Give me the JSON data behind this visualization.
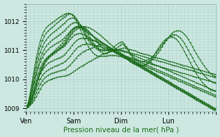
{
  "xlabel": "Pression niveau de la mer( hPa )",
  "background_color": "#cce8e0",
  "plot_bg_color": "#cce8e0",
  "grid_color": "#aacccc",
  "line_color": "#1a6b1a",
  "marker": "+",
  "xlim": [
    0,
    96
  ],
  "ylim": [
    1008.9,
    1012.6
  ],
  "yticks": [
    1009,
    1010,
    1011,
    1012
  ],
  "xtick_positions": [
    0,
    24,
    48,
    72,
    96
  ],
  "xtick_labels": [
    "Ven",
    "Sam",
    "Dim",
    "Lun",
    ""
  ],
  "series": [
    [
      1009.0,
      1009.05,
      1009.12,
      1009.2,
      1009.3,
      1009.42,
      1009.55,
      1009.68,
      1009.8,
      1009.88,
      1009.93,
      1009.97,
      1010.0,
      1010.03,
      1010.05,
      1010.07,
      1010.09,
      1010.1,
      1010.11,
      1010.12,
      1010.14,
      1010.17,
      1010.2,
      1010.25,
      1010.3,
      1010.35,
      1010.4,
      1010.44,
      1010.48,
      1010.52,
      1010.56,
      1010.6,
      1010.64,
      1010.68,
      1010.72,
      1010.76,
      1010.8,
      1010.84,
      1010.88,
      1010.9,
      1010.92,
      1010.94,
      1010.96,
      1010.98,
      1011.0,
      1011.02,
      1011.04,
      1011.06,
      1011.08,
      1011.08,
      1011.06,
      1011.04,
      1011.02,
      1011.0,
      1010.98,
      1010.95,
      1010.92,
      1010.9,
      1010.88,
      1010.86,
      1010.84,
      1010.82,
      1010.8,
      1010.78,
      1010.76,
      1010.74,
      1010.72,
      1010.7,
      1010.68,
      1010.66,
      1010.64,
      1010.62,
      1010.6,
      1010.58,
      1010.56,
      1010.54,
      1010.52,
      1010.5,
      1010.48,
      1010.46,
      1010.44,
      1010.42,
      1010.4,
      1010.38,
      1010.36,
      1010.34,
      1010.32,
      1010.3,
      1010.28,
      1010.26,
      1010.24,
      1010.22,
      1010.2,
      1010.18,
      1010.16
    ],
    [
      1009.0,
      1009.06,
      1009.14,
      1009.25,
      1009.38,
      1009.54,
      1009.7,
      1009.84,
      1009.96,
      1010.04,
      1010.1,
      1010.15,
      1010.19,
      1010.22,
      1010.24,
      1010.26,
      1010.28,
      1010.3,
      1010.32,
      1010.34,
      1010.38,
      1010.44,
      1010.5,
      1010.58,
      1010.66,
      1010.74,
      1010.82,
      1010.88,
      1010.93,
      1010.97,
      1011.0,
      1011.03,
      1011.06,
      1011.09,
      1011.12,
      1011.15,
      1011.18,
      1011.21,
      1011.22,
      1011.2,
      1011.16,
      1011.11,
      1011.05,
      1010.99,
      1010.95,
      1010.91,
      1010.87,
      1010.84,
      1010.82,
      1010.8,
      1010.78,
      1010.76,
      1010.74,
      1010.72,
      1010.7,
      1010.68,
      1010.66,
      1010.64,
      1010.62,
      1010.6,
      1010.58,
      1010.56,
      1010.54,
      1010.52,
      1010.5,
      1010.48,
      1010.46,
      1010.44,
      1010.42,
      1010.4,
      1010.38,
      1010.36,
      1010.34,
      1010.32,
      1010.3,
      1010.28,
      1010.26,
      1010.24,
      1010.22,
      1010.2,
      1010.18,
      1010.16,
      1010.14,
      1010.12,
      1010.1,
      1010.08,
      1010.06,
      1010.04,
      1010.02,
      1010.0,
      1009.98,
      1009.96,
      1009.94,
      1009.92,
      1009.9,
      1009.9
    ],
    [
      1009.0,
      1009.08,
      1009.18,
      1009.32,
      1009.5,
      1009.68,
      1009.86,
      1010.02,
      1010.14,
      1010.22,
      1010.28,
      1010.33,
      1010.37,
      1010.41,
      1010.44,
      1010.47,
      1010.5,
      1010.53,
      1010.56,
      1010.6,
      1010.65,
      1010.72,
      1010.8,
      1010.89,
      1010.98,
      1011.06,
      1011.12,
      1011.16,
      1011.19,
      1011.21,
      1011.22,
      1011.22,
      1011.21,
      1011.2,
      1011.18,
      1011.16,
      1011.14,
      1011.12,
      1011.1,
      1011.08,
      1011.06,
      1011.04,
      1011.02,
      1011.0,
      1010.98,
      1010.95,
      1010.92,
      1010.89,
      1010.86,
      1010.83,
      1010.8,
      1010.77,
      1010.74,
      1010.71,
      1010.68,
      1010.65,
      1010.62,
      1010.59,
      1010.56,
      1010.53,
      1010.5,
      1010.47,
      1010.44,
      1010.41,
      1010.38,
      1010.35,
      1010.32,
      1010.29,
      1010.26,
      1010.23,
      1010.2,
      1010.17,
      1010.14,
      1010.11,
      1010.08,
      1010.05,
      1010.02,
      1009.99,
      1009.96,
      1009.93,
      1009.9,
      1009.87,
      1009.84,
      1009.81,
      1009.78,
      1009.75,
      1009.72,
      1009.69,
      1009.66,
      1009.63,
      1009.6,
      1009.57,
      1009.54,
      1009.51,
      1009.48,
      1009.45
    ],
    [
      1009.0,
      1009.1,
      1009.22,
      1009.38,
      1009.58,
      1009.8,
      1010.02,
      1010.2,
      1010.33,
      1010.42,
      1010.5,
      1010.56,
      1010.6,
      1010.64,
      1010.67,
      1010.7,
      1010.73,
      1010.76,
      1010.8,
      1010.85,
      1010.92,
      1011.0,
      1011.09,
      1011.18,
      1011.26,
      1011.33,
      1011.38,
      1011.41,
      1011.42,
      1011.42,
      1011.41,
      1011.39,
      1011.37,
      1011.35,
      1011.33,
      1011.31,
      1011.29,
      1011.27,
      1011.25,
      1011.22,
      1011.18,
      1011.14,
      1011.1,
      1011.05,
      1011.0,
      1010.96,
      1010.91,
      1010.87,
      1010.83,
      1010.79,
      1010.75,
      1010.71,
      1010.67,
      1010.63,
      1010.59,
      1010.55,
      1010.51,
      1010.47,
      1010.43,
      1010.39,
      1010.35,
      1010.31,
      1010.27,
      1010.23,
      1010.19,
      1010.15,
      1010.11,
      1010.07,
      1010.03,
      1009.99,
      1009.95,
      1009.91,
      1009.87,
      1009.83,
      1009.79,
      1009.75,
      1009.71,
      1009.67,
      1009.63,
      1009.59,
      1009.55,
      1009.51,
      1009.47,
      1009.43,
      1009.39,
      1009.35,
      1009.31,
      1009.27,
      1009.23,
      1009.19,
      1009.15,
      1009.11,
      1009.07,
      1009.03,
      1008.99,
      1009.0
    ],
    [
      1009.0,
      1009.12,
      1009.28,
      1009.48,
      1009.72,
      1009.97,
      1010.2,
      1010.4,
      1010.55,
      1010.65,
      1010.73,
      1010.8,
      1010.85,
      1010.9,
      1010.94,
      1010.98,
      1011.02,
      1011.06,
      1011.1,
      1011.15,
      1011.22,
      1011.3,
      1011.38,
      1011.46,
      1011.52,
      1011.56,
      1011.58,
      1011.58,
      1011.56,
      1011.53,
      1011.49,
      1011.45,
      1011.41,
      1011.37,
      1011.33,
      1011.29,
      1011.25,
      1011.21,
      1011.17,
      1011.13,
      1011.1,
      1011.06,
      1011.02,
      1010.98,
      1010.94,
      1010.9,
      1010.86,
      1010.82,
      1010.78,
      1010.74,
      1010.7,
      1010.66,
      1010.62,
      1010.58,
      1010.54,
      1010.5,
      1010.46,
      1010.42,
      1010.38,
      1010.34,
      1010.3,
      1010.26,
      1010.22,
      1010.18,
      1010.14,
      1010.1,
      1010.06,
      1010.02,
      1009.98,
      1009.94,
      1009.9,
      1009.86,
      1009.82,
      1009.78,
      1009.74,
      1009.7,
      1009.66,
      1009.62,
      1009.58,
      1009.54,
      1009.5,
      1009.46,
      1009.42,
      1009.38,
      1009.34,
      1009.3,
      1009.26,
      1009.22,
      1009.18,
      1009.14,
      1009.1,
      1009.06,
      1009.02,
      1008.98,
      1008.94,
      1009.0
    ],
    [
      1009.0,
      1009.14,
      1009.34,
      1009.6,
      1009.88,
      1010.16,
      1010.4,
      1010.6,
      1010.75,
      1010.87,
      1010.96,
      1011.04,
      1011.1,
      1011.15,
      1011.2,
      1011.24,
      1011.28,
      1011.32,
      1011.37,
      1011.43,
      1011.5,
      1011.58,
      1011.66,
      1011.73,
      1011.78,
      1011.8,
      1011.8,
      1011.78,
      1011.74,
      1011.7,
      1011.65,
      1011.6,
      1011.55,
      1011.5,
      1011.45,
      1011.4,
      1011.35,
      1011.3,
      1011.25,
      1011.2,
      1011.16,
      1011.11,
      1011.06,
      1011.01,
      1010.97,
      1010.93,
      1010.88,
      1010.84,
      1010.8,
      1010.76,
      1010.72,
      1010.68,
      1010.64,
      1010.6,
      1010.56,
      1010.52,
      1010.48,
      1010.44,
      1010.4,
      1010.36,
      1010.32,
      1010.28,
      1010.24,
      1010.2,
      1010.16,
      1010.12,
      1010.08,
      1010.04,
      1010.0,
      1009.96,
      1009.92,
      1009.88,
      1009.84,
      1009.8,
      1009.76,
      1009.72,
      1009.68,
      1009.64,
      1009.6,
      1009.56,
      1009.52,
      1009.48,
      1009.44,
      1009.4,
      1009.36,
      1009.32,
      1009.28,
      1009.24,
      1009.2,
      1009.16,
      1009.12,
      1009.08,
      1009.04,
      1009.0,
      1008.96,
      1009.0
    ],
    [
      1009.0,
      1009.16,
      1009.38,
      1009.66,
      1009.96,
      1010.24,
      1010.5,
      1010.72,
      1010.9,
      1011.04,
      1011.15,
      1011.23,
      1011.3,
      1011.36,
      1011.41,
      1011.46,
      1011.51,
      1011.56,
      1011.62,
      1011.68,
      1011.75,
      1011.82,
      1011.88,
      1011.93,
      1011.96,
      1011.96,
      1011.93,
      1011.88,
      1011.82,
      1011.76,
      1011.7,
      1011.64,
      1011.58,
      1011.52,
      1011.47,
      1011.42,
      1011.37,
      1011.32,
      1011.27,
      1011.22,
      1011.17,
      1011.13,
      1011.09,
      1011.05,
      1011.01,
      1010.97,
      1010.93,
      1010.89,
      1010.86,
      1010.82,
      1010.78,
      1010.74,
      1010.7,
      1010.66,
      1010.62,
      1010.58,
      1010.54,
      1010.5,
      1010.46,
      1010.42,
      1010.38,
      1010.34,
      1010.3,
      1010.26,
      1010.22,
      1010.18,
      1010.14,
      1010.1,
      1010.06,
      1010.02,
      1009.98,
      1009.94,
      1009.9,
      1009.86,
      1009.82,
      1009.78,
      1009.74,
      1009.7,
      1009.66,
      1009.62,
      1009.58,
      1009.54,
      1009.5,
      1009.46,
      1009.42,
      1009.38,
      1009.34,
      1009.3,
      1009.26,
      1009.22,
      1009.18,
      1009.14,
      1009.1,
      1009.06,
      1009.02,
      1009.0
    ],
    [
      1009.0,
      1009.18,
      1009.44,
      1009.76,
      1010.1,
      1010.42,
      1010.7,
      1010.93,
      1011.12,
      1011.26,
      1011.37,
      1011.46,
      1011.53,
      1011.59,
      1011.65,
      1011.7,
      1011.76,
      1011.82,
      1011.88,
      1011.94,
      1012.0,
      1012.06,
      1012.1,
      1012.12,
      1012.1,
      1012.05,
      1011.97,
      1011.87,
      1011.76,
      1011.65,
      1011.54,
      1011.44,
      1011.34,
      1011.25,
      1011.18,
      1011.12,
      1011.07,
      1011.04,
      1011.02,
      1011.01,
      1011.01,
      1011.02,
      1011.03,
      1011.04,
      1011.04,
      1011.04,
      1011.03,
      1011.02,
      1011.0,
      1010.98,
      1010.96,
      1010.94,
      1010.92,
      1010.9,
      1010.88,
      1010.86,
      1010.84,
      1010.82,
      1010.8,
      1010.78,
      1010.76,
      1010.74,
      1010.72,
      1010.7,
      1010.68,
      1010.66,
      1010.64,
      1010.62,
      1010.6,
      1010.58,
      1010.56,
      1010.54,
      1010.52,
      1010.5,
      1010.48,
      1010.46,
      1010.44,
      1010.42,
      1010.4,
      1010.38,
      1010.36,
      1010.34,
      1010.32,
      1010.3,
      1010.28,
      1010.26,
      1010.24,
      1010.22,
      1010.2,
      1010.18,
      1010.16,
      1010.14,
      1010.12,
      1010.1,
      1010.08,
      1010.1
    ],
    [
      1009.0,
      1009.2,
      1009.5,
      1009.86,
      1010.24,
      1010.6,
      1010.9,
      1011.15,
      1011.34,
      1011.49,
      1011.6,
      1011.68,
      1011.74,
      1011.8,
      1011.86,
      1011.92,
      1011.98,
      1012.04,
      1012.1,
      1012.15,
      1012.2,
      1012.24,
      1012.26,
      1012.24,
      1012.18,
      1012.1,
      1011.98,
      1011.85,
      1011.72,
      1011.58,
      1011.46,
      1011.35,
      1011.26,
      1011.18,
      1011.11,
      1011.06,
      1011.02,
      1011.0,
      1010.99,
      1010.99,
      1011.0,
      1011.01,
      1011.02,
      1011.02,
      1011.02,
      1011.01,
      1011.0,
      1010.99,
      1010.97,
      1010.95,
      1010.93,
      1010.91,
      1010.88,
      1010.85,
      1010.82,
      1010.79,
      1010.76,
      1010.73,
      1010.7,
      1010.67,
      1010.64,
      1010.61,
      1010.58,
      1010.55,
      1010.52,
      1010.49,
      1010.46,
      1010.43,
      1010.4,
      1010.37,
      1010.34,
      1010.31,
      1010.28,
      1010.25,
      1010.22,
      1010.19,
      1010.16,
      1010.13,
      1010.1,
      1010.07,
      1010.04,
      1010.01,
      1009.98,
      1009.95,
      1009.92,
      1009.89,
      1009.86,
      1009.83,
      1009.8,
      1009.77,
      1009.74,
      1009.71,
      1009.68,
      1009.65,
      1009.62,
      1009.6
    ],
    [
      1009.0,
      1009.22,
      1009.56,
      1009.96,
      1010.38,
      1010.76,
      1011.08,
      1011.34,
      1011.54,
      1011.68,
      1011.78,
      1011.85,
      1011.91,
      1011.96,
      1012.01,
      1012.06,
      1012.11,
      1012.16,
      1012.2,
      1012.24,
      1012.27,
      1012.28,
      1012.27,
      1012.22,
      1012.14,
      1012.02,
      1011.88,
      1011.72,
      1011.56,
      1011.4,
      1011.26,
      1011.14,
      1011.03,
      1010.95,
      1010.88,
      1010.83,
      1010.8,
      1010.79,
      1010.79,
      1010.8,
      1010.81,
      1010.82,
      1010.83,
      1010.83,
      1010.83,
      1010.82,
      1010.8,
      1010.79,
      1010.77,
      1010.75,
      1010.73,
      1010.71,
      1010.68,
      1010.65,
      1010.62,
      1010.59,
      1010.56,
      1010.53,
      1010.5,
      1010.47,
      1010.44,
      1010.41,
      1010.38,
      1010.35,
      1010.32,
      1010.29,
      1010.26,
      1010.23,
      1010.2,
      1010.17,
      1010.14,
      1010.11,
      1010.08,
      1010.05,
      1010.02,
      1009.99,
      1009.96,
      1009.93,
      1009.9,
      1009.87,
      1009.84,
      1009.81,
      1009.78,
      1009.75,
      1009.72,
      1009.69,
      1009.66,
      1009.63,
      1009.6,
      1009.57,
      1009.54,
      1009.51,
      1009.48,
      1009.45,
      1009.42,
      1009.4
    ],
    [
      1009.0,
      1009.1,
      1009.24,
      1009.42,
      1009.64,
      1009.88,
      1010.1,
      1010.3,
      1010.46,
      1010.58,
      1010.67,
      1010.74,
      1010.8,
      1010.85,
      1010.9,
      1010.95,
      1011.0,
      1011.06,
      1011.12,
      1011.19,
      1011.28,
      1011.38,
      1011.48,
      1011.58,
      1011.66,
      1011.72,
      1011.77,
      1011.8,
      1011.82,
      1011.82,
      1011.81,
      1011.79,
      1011.76,
      1011.72,
      1011.68,
      1011.63,
      1011.58,
      1011.52,
      1011.46,
      1011.4,
      1011.34,
      1011.28,
      1011.22,
      1011.16,
      1011.1,
      1011.04,
      1010.98,
      1010.92,
      1010.86,
      1010.8,
      1010.74,
      1010.68,
      1010.62,
      1010.57,
      1010.53,
      1010.5,
      1010.48,
      1010.47,
      1010.48,
      1010.5,
      1010.53,
      1010.57,
      1010.62,
      1010.68,
      1010.75,
      1010.83,
      1010.92,
      1011.02,
      1011.13,
      1011.24,
      1011.34,
      1011.44,
      1011.52,
      1011.59,
      1011.64,
      1011.67,
      1011.68,
      1011.66,
      1011.62,
      1011.56,
      1011.48,
      1011.38,
      1011.26,
      1011.14,
      1011.02,
      1010.9,
      1010.78,
      1010.67,
      1010.56,
      1010.46,
      1010.37,
      1010.29,
      1010.22,
      1010.16,
      1010.11,
      1010.1
    ],
    [
      1009.0,
      1009.1,
      1009.22,
      1009.38,
      1009.58,
      1009.8,
      1010.02,
      1010.22,
      1010.38,
      1010.52,
      1010.63,
      1010.72,
      1010.8,
      1010.87,
      1010.93,
      1010.98,
      1011.04,
      1011.1,
      1011.16,
      1011.24,
      1011.33,
      1011.44,
      1011.55,
      1011.65,
      1011.73,
      1011.79,
      1011.82,
      1011.83,
      1011.82,
      1011.79,
      1011.74,
      1011.68,
      1011.6,
      1011.52,
      1011.43,
      1011.33,
      1011.24,
      1011.16,
      1011.09,
      1011.04,
      1011.0,
      1010.99,
      1010.99,
      1011.01,
      1011.03,
      1011.07,
      1011.12,
      1011.17,
      1011.22,
      1011.16,
      1011.08,
      1010.99,
      1010.9,
      1010.82,
      1010.75,
      1010.7,
      1010.66,
      1010.63,
      1010.62,
      1010.63,
      1010.65,
      1010.68,
      1010.72,
      1010.78,
      1010.84,
      1010.92,
      1011.0,
      1011.1,
      1011.19,
      1011.28,
      1011.36,
      1011.43,
      1011.49,
      1011.53,
      1011.54,
      1011.53,
      1011.49,
      1011.43,
      1011.35,
      1011.25,
      1011.13,
      1011.01,
      1010.88,
      1010.76,
      1010.64,
      1010.52,
      1010.41,
      1010.31,
      1010.22,
      1010.13,
      1010.06,
      1010.0,
      1009.95,
      1009.91,
      1009.88,
      1009.88
    ],
    [
      1009.0,
      1009.1,
      1009.22,
      1009.38,
      1009.58,
      1009.8,
      1010.02,
      1010.24,
      1010.42,
      1010.56,
      1010.67,
      1010.76,
      1010.84,
      1010.91,
      1010.98,
      1011.05,
      1011.11,
      1011.18,
      1011.25,
      1011.33,
      1011.42,
      1011.52,
      1011.62,
      1011.71,
      1011.78,
      1011.82,
      1011.84,
      1011.82,
      1011.78,
      1011.72,
      1011.64,
      1011.55,
      1011.44,
      1011.33,
      1011.22,
      1011.12,
      1011.03,
      1010.96,
      1010.91,
      1010.89,
      1010.9,
      1010.93,
      1010.99,
      1011.06,
      1011.13,
      1011.19,
      1011.24,
      1011.28,
      1011.3,
      1011.22,
      1011.12,
      1011.0,
      1010.88,
      1010.76,
      1010.66,
      1010.58,
      1010.52,
      1010.48,
      1010.47,
      1010.48,
      1010.52,
      1010.58,
      1010.66,
      1010.75,
      1010.85,
      1010.96,
      1011.07,
      1011.17,
      1011.26,
      1011.34,
      1011.4,
      1011.44,
      1011.47,
      1011.47,
      1011.44,
      1011.39,
      1011.31,
      1011.21,
      1011.1,
      1010.97,
      1010.84,
      1010.71,
      1010.58,
      1010.45,
      1010.33,
      1010.21,
      1010.1,
      1010.0,
      1009.91,
      1009.83,
      1009.76,
      1009.7,
      1009.65,
      1009.62,
      1009.6,
      1009.6
    ]
  ]
}
